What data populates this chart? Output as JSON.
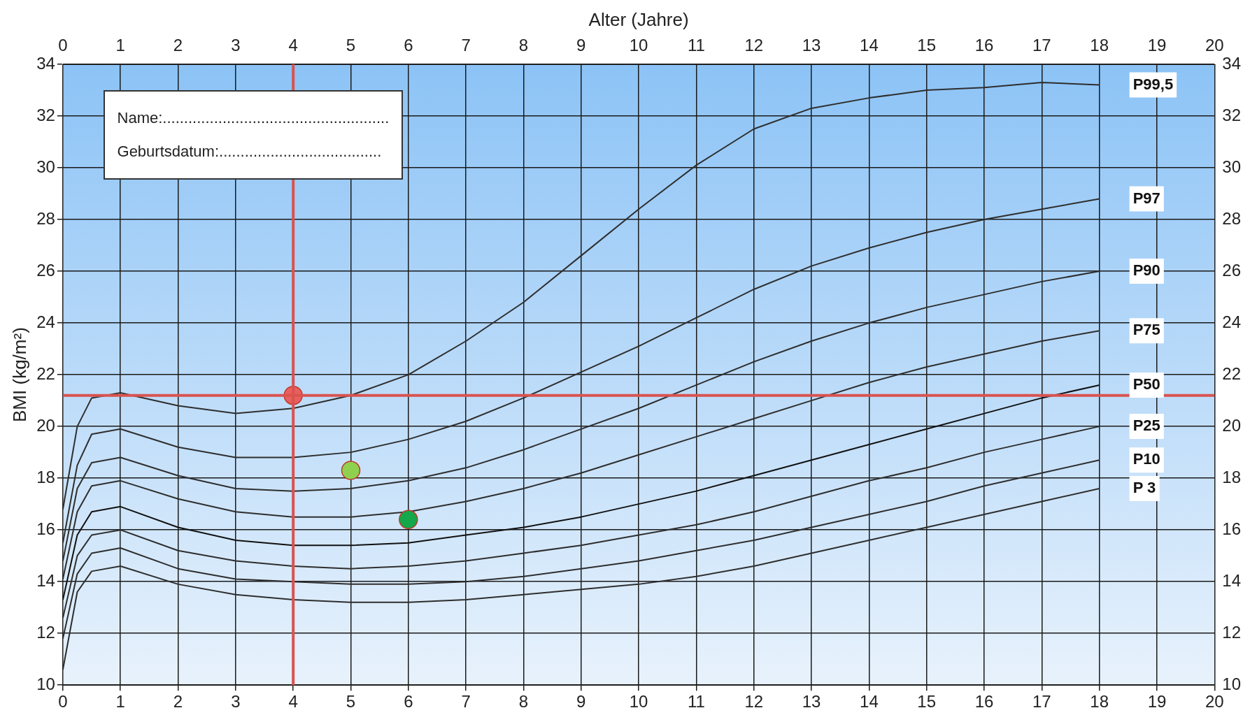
{
  "chart_data": {
    "type": "line",
    "x2label": "Alter (Jahre)",
    "ylabel": "BMI (kg/m²)",
    "x": [
      0,
      0.25,
      0.5,
      1,
      2,
      3,
      4,
      5,
      6,
      7,
      8,
      9,
      10,
      11,
      12,
      13,
      14,
      15,
      16,
      17,
      18
    ],
    "series": [
      {
        "name": "P99,5",
        "color": "#2e2e2e",
        "values": [
          16.8,
          20.0,
          21.1,
          21.3,
          20.8,
          20.5,
          20.7,
          21.2,
          22.0,
          23.3,
          24.8,
          26.6,
          28.4,
          30.1,
          31.5,
          32.3,
          32.7,
          33.0,
          33.1,
          33.3,
          33.2
        ]
      },
      {
        "name": "P97",
        "color": "#2e2e2e",
        "values": [
          15.5,
          18.5,
          19.7,
          19.9,
          19.2,
          18.8,
          18.8,
          19.0,
          19.5,
          20.2,
          21.1,
          22.1,
          23.1,
          24.2,
          25.3,
          26.2,
          26.9,
          27.5,
          28.0,
          28.4,
          28.8
        ]
      },
      {
        "name": "P90",
        "color": "#2e2e2e",
        "values": [
          14.8,
          17.6,
          18.6,
          18.8,
          18.1,
          17.6,
          17.5,
          17.6,
          17.9,
          18.4,
          19.1,
          19.9,
          20.7,
          21.6,
          22.5,
          23.3,
          24.0,
          24.6,
          25.1,
          25.6,
          26.0
        ]
      },
      {
        "name": "P75",
        "color": "#2e2e2e",
        "values": [
          14.1,
          16.7,
          17.7,
          17.9,
          17.2,
          16.7,
          16.5,
          16.5,
          16.7,
          17.1,
          17.6,
          18.2,
          18.9,
          19.6,
          20.3,
          21.0,
          21.7,
          22.3,
          22.8,
          23.3,
          23.7
        ]
      },
      {
        "name": "P50",
        "color": "#111111",
        "values": [
          13.3,
          15.8,
          16.7,
          16.9,
          16.1,
          15.6,
          15.4,
          15.4,
          15.5,
          15.8,
          16.1,
          16.5,
          17.0,
          17.5,
          18.1,
          18.7,
          19.3,
          19.9,
          20.5,
          21.1,
          21.6
        ]
      },
      {
        "name": "P25",
        "color": "#2e2e2e",
        "values": [
          12.6,
          15.0,
          15.8,
          16.0,
          15.2,
          14.8,
          14.6,
          14.5,
          14.6,
          14.8,
          15.1,
          15.4,
          15.8,
          16.2,
          16.7,
          17.3,
          17.9,
          18.4,
          19.0,
          19.5,
          20.0
        ]
      },
      {
        "name": "P10",
        "color": "#2e2e2e",
        "values": [
          11.8,
          14.3,
          15.1,
          15.3,
          14.5,
          14.1,
          14.0,
          13.9,
          13.9,
          14.0,
          14.2,
          14.5,
          14.8,
          15.2,
          15.6,
          16.1,
          16.6,
          17.1,
          17.7,
          18.2,
          18.7
        ]
      },
      {
        "name": "P 3",
        "color": "#2e2e2e",
        "values": [
          10.6,
          13.6,
          14.4,
          14.6,
          13.9,
          13.5,
          13.3,
          13.2,
          13.2,
          13.3,
          13.5,
          13.7,
          13.9,
          14.2,
          14.6,
          15.1,
          15.6,
          16.1,
          16.6,
          17.1,
          17.6
        ]
      },
      {
        "type": "scatter",
        "x": [
          4,
          5,
          6
        ],
        "values": [
          21.2,
          18.3,
          16.4
        ],
        "colors": [
          "#e8605e",
          "#8fd14f",
          "#14a84a"
        ]
      }
    ],
    "xlim": [
      0,
      20
    ],
    "xticks": [
      0,
      1,
      2,
      3,
      4,
      5,
      6,
      7,
      8,
      9,
      10,
      11,
      12,
      13,
      14,
      15,
      16,
      17,
      18,
      19,
      20
    ],
    "x2lim": [
      0,
      20
    ],
    "x2ticks": [
      0,
      1,
      2,
      3,
      4,
      5,
      6,
      7,
      8,
      9,
      10,
      11,
      12,
      13,
      14,
      15,
      16,
      17,
      18,
      19,
      20
    ],
    "ylim": [
      10,
      34
    ],
    "yticks": [
      10,
      12,
      14,
      16,
      18,
      20,
      22,
      24,
      26,
      28,
      30,
      32,
      34
    ],
    "y2lim": [
      10,
      34
    ],
    "y2ticks": [
      10,
      12,
      14,
      16,
      18,
      20,
      22,
      24,
      26,
      28,
      30,
      32,
      34
    ],
    "ref_lines": [
      {
        "axis": "x",
        "value": 4,
        "color": "#d9534f"
      },
      {
        "axis": "y",
        "value": 21.2,
        "color": "#d9534f"
      }
    ],
    "annotations": [
      "Name:.....................................................",
      "Geburtsdatum:......................................"
    ],
    "grid": true,
    "legend": false,
    "line_style": "solid"
  }
}
